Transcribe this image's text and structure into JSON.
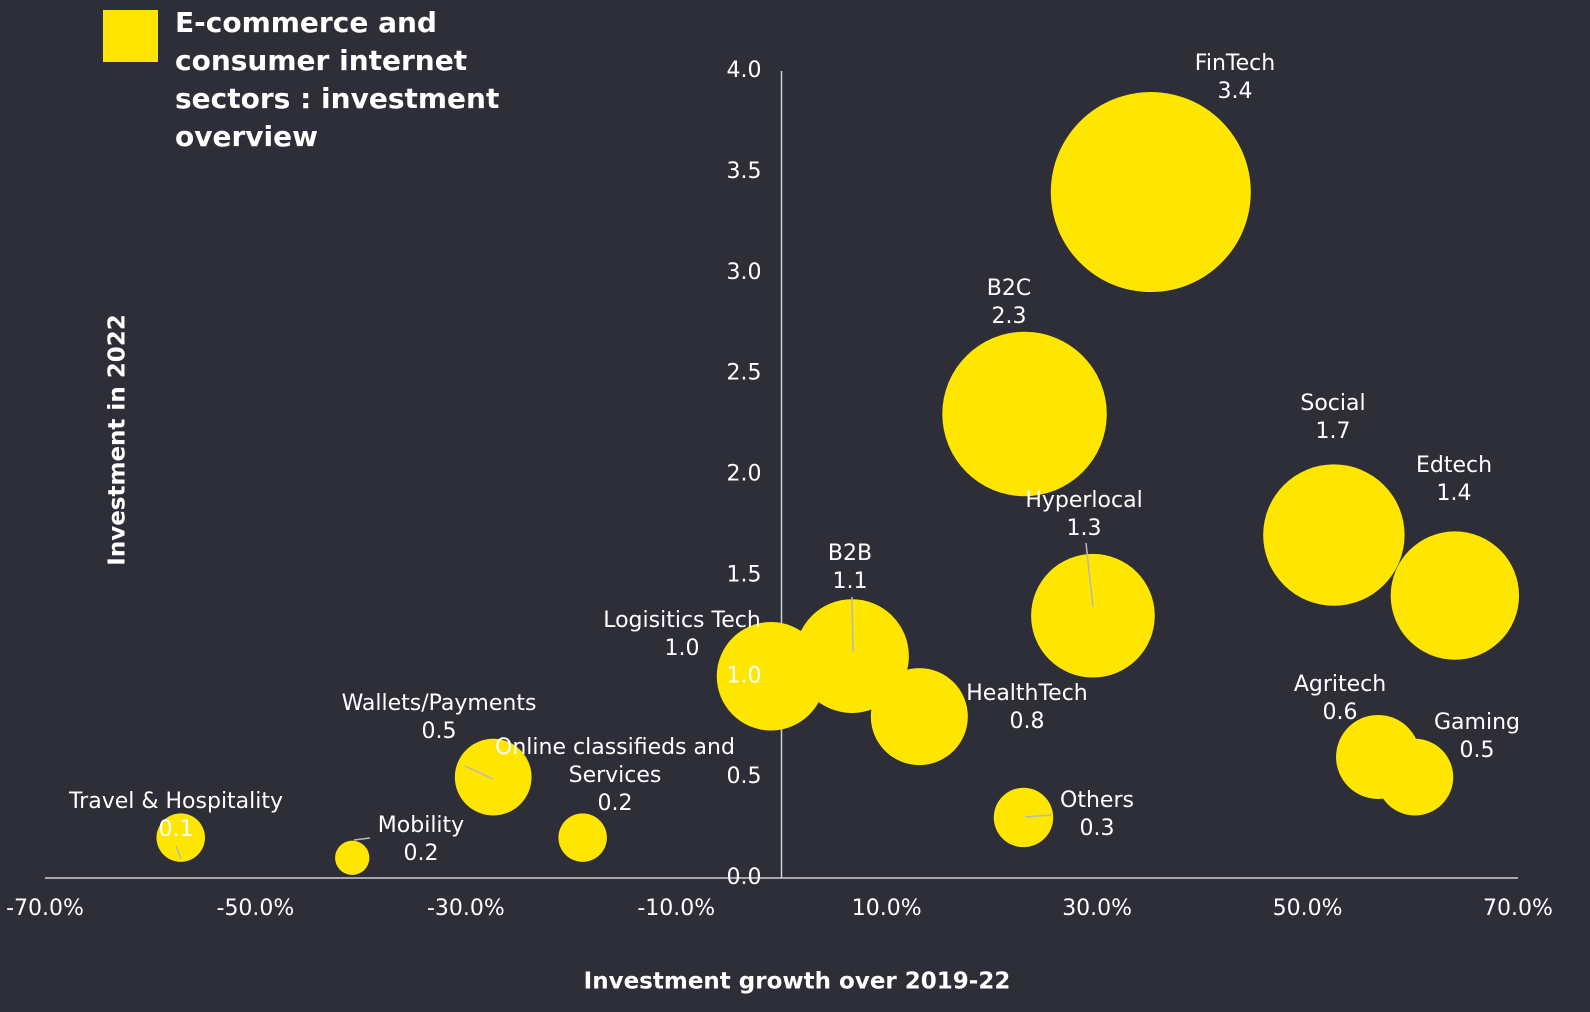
{
  "chart_data": {
    "type": "bubble",
    "x_label": "Investment growth over 2019-22",
    "y_label": "Investment in 2022",
    "xlim": [
      -70,
      70
    ],
    "xticks": [
      {
        "value": -70,
        "label": "-70.0%"
      },
      {
        "value": -50,
        "label": "-50.0%"
      },
      {
        "value": -30,
        "label": "-30.0%"
      },
      {
        "value": -10,
        "label": "-10.0%"
      },
      {
        "value": 10,
        "label": "10.0%"
      },
      {
        "value": 30,
        "label": "30.0%"
      },
      {
        "value": 50,
        "label": "50.0%"
      },
      {
        "value": 70,
        "label": "70.0%"
      }
    ],
    "ylim": [
      0,
      4
    ],
    "yticks": [
      {
        "value": 0,
        "label": "0.0"
      },
      0.5,
      {
        "value": 1,
        "label": "1.0"
      },
      1.5,
      {
        "value": 2,
        "label": "2.0"
      },
      2.5,
      {
        "value": 3,
        "label": "3.0"
      },
      3.5,
      {
        "value": 4,
        "label": "4.0"
      }
    ],
    "legend": "top-left",
    "series": [
      {
        "name": "E-commerce and consumer internet sectors : investment overview",
        "color": "#ffe600",
        "labels": [
          "FinTech",
          "B2C",
          "Social",
          "Edtech",
          "Hyperlocal",
          "B2B",
          "Logisitics Tech",
          "HealthTech",
          "Wallets/Payments",
          "Online classifieds and Services",
          "Travel & Hospitality",
          "Mobility",
          "Others",
          "Agritech",
          "Gaming"
        ],
        "x": [
          35.1,
          23.1,
          52.5,
          64.0,
          29.6,
          6.7,
          -1.0,
          13.1,
          -27.4,
          -18.9,
          -40.8,
          -57.1,
          23.0,
          56.7,
          60.2
        ],
        "values": [
          3.4,
          2.3,
          1.7,
          1.4,
          1.3,
          1.1,
          1,
          0.8,
          0.5,
          0.2,
          0.1,
          0.2,
          0.3,
          0.6,
          0.5
        ],
        "value_labels": [
          "3.4",
          "2.3",
          "1.7",
          "1.4",
          "1.3",
          "1.1",
          "1.0",
          "0.8",
          "0.5",
          "0.2",
          "0.1",
          "0.2",
          "0.3",
          "0.6",
          "0.5"
        ]
      }
    ]
  }
}
